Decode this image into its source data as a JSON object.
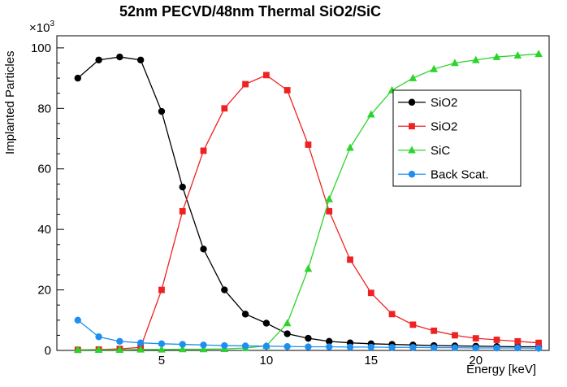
{
  "chart_data": {
    "type": "line",
    "title": "52nm PECVD/48nm Thermal SiO2/SiC",
    "xlabel": "Energy [keV]",
    "ylabel": "Implanted Particles",
    "y_scale_label": {
      "base": "×10",
      "exp": "3"
    },
    "xlim": [
      0,
      23.5
    ],
    "ylim": [
      0,
      104
    ],
    "xticks": [
      5,
      10,
      15,
      20
    ],
    "yticks": [
      0,
      20,
      40,
      60,
      80,
      100
    ],
    "x_minor_step": 1,
    "y_minor_step": 5,
    "grid": false,
    "legend_position": "upper-right",
    "x": [
      1,
      2,
      3,
      4,
      5,
      6,
      7,
      8,
      9,
      10,
      11,
      12,
      13,
      14,
      15,
      16,
      17,
      18,
      19,
      20,
      21,
      22,
      23
    ],
    "series": [
      {
        "name": "SiO2",
        "color": "#000000",
        "marker": "circle",
        "values": [
          90,
          96,
          97,
          96,
          79,
          54,
          33.5,
          20,
          12,
          9,
          5.5,
          4,
          3,
          2.5,
          2.2,
          2,
          1.8,
          1.6,
          1.5,
          1.4,
          1.3,
          1.2,
          1.2
        ]
      },
      {
        "name": "SiO2",
        "color": "#ee2222",
        "marker": "square",
        "values": [
          0.2,
          0.3,
          0.5,
          1,
          20,
          46,
          66,
          80,
          88,
          91,
          86,
          68,
          46,
          30,
          19,
          12,
          8.5,
          6.5,
          5,
          4,
          3.5,
          3,
          2.5
        ]
      },
      {
        "name": "SiC",
        "color": "#2bd42b",
        "marker": "triangle",
        "values": [
          0.2,
          0.2,
          0.2,
          0.3,
          0.3,
          0.4,
          0.4,
          0.5,
          0.8,
          1.5,
          9,
          27,
          50,
          67,
          78,
          86,
          90,
          93,
          95,
          96,
          97,
          97.5,
          98
        ]
      },
      {
        "name": "Back Scat.",
        "color": "#1e8ff2",
        "marker": "circle",
        "values": [
          10,
          4.5,
          3,
          2.5,
          2.2,
          2,
          1.8,
          1.6,
          1.5,
          1.4,
          1.3,
          1.2,
          1.2,
          1.1,
          1.1,
          1,
          1,
          0.9,
          0.9,
          0.8,
          0.8,
          0.8,
          0.7
        ]
      }
    ]
  }
}
